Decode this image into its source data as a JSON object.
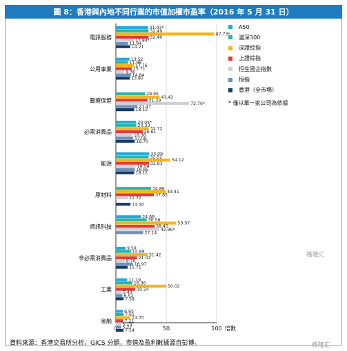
{
  "title": "圖 8：香港與內地不同行業的市值加權市盈率（2016 年 5 月 31 日）",
  "source_note": "資料來源：香港交易所分析，GICS 分類，市值及盈利數據源自彭博。",
  "watermark": "格隆汇",
  "legend_note": "* 僅以單一家公司為依據",
  "chart_data": {
    "type": "bar",
    "orientation": "horizontal",
    "title": "圖 8：香港與內地不同行業的市值加權市盈率（2016 年 5 月 31 日）",
    "xlabel": "倍數",
    "xlim": [
      0,
      100
    ],
    "xticks": [
      "0",
      "50",
      "100"
    ],
    "legend_position": "right",
    "categories": [
      "電訊服務",
      "公用事業",
      "醫療保健",
      "必需消費品",
      "能源",
      "原材料",
      "資訊科技",
      "非必需消費品",
      "工業",
      "金融"
    ],
    "series": [
      {
        "name": "A50",
        "color": "#2aa8d8",
        "values": [
          31.93,
          13.52,
          null,
          20.05,
          33.09,
          null,
          24.88,
          9.59,
          11.19,
          6.95
        ],
        "labels": [
          "31.93*",
          "13.52",
          "",
          "20.05*",
          "33.09",
          "",
          "24.88",
          "9.59",
          "11.19",
          "6.95"
        ]
      },
      {
        "name": "滬深300",
        "color": "#2ab5a6",
        "values": [
          32.49,
          11.98,
          28.95,
          20.33,
          32.52,
          34.86,
          30.58,
          14.89,
          16.36,
          7.61
        ],
        "labels": [
          "32.49",
          "11.98",
          "28.95",
          "20.33",
          "32.52",
          "34.86",
          "30.58",
          "14.89",
          "16.36",
          "7.61"
        ]
      },
      {
        "name": "深證綜指",
        "color": "#f5b41f",
        "values": [
          97.73,
          17.76,
          43.42,
          32.72,
          54.12,
          49.41,
          59.97,
          31.42,
          50.02,
          14.35
        ],
        "labels": [
          "97.73*",
          "17.76",
          "43.42",
          "32.72",
          "54.12",
          "49.41",
          "59.97",
          "31.42",
          "50.02",
          "14.35"
        ]
      },
      {
        "name": "上證綜指",
        "color": "#e03a3e",
        "values": [
          32.49,
          15.71,
          31.29,
          26.61,
          32.83,
          37.85,
          38.45,
          21.02,
          19.24,
          7.21
        ],
        "labels": [
          "32.49",
          "15.71",
          "31.29",
          "26.61",
          "32.83",
          "37.85",
          "38.45",
          "21.02",
          "19.24",
          "7.21"
        ]
      },
      {
        "name": "恒生國企指數",
        "color": "#cfcfd6",
        "values": [
          17.84,
          8.36,
          72.76,
          16.36,
          19.59,
          11.72,
          42.96,
          8.7,
          5.43,
          5.13
        ],
        "labels": [
          "17.84*",
          "8.36",
          "72.76*",
          "16.36",
          "19.59",
          "11.72",
          "42.96*",
          "8.70",
          "5.43",
          "5.13"
        ]
      },
      {
        "name": "恒指",
        "color": "#6f8fb4",
        "values": [
          11.94,
          14.84,
          21.47,
          17.09,
          18.85,
          null,
          27.14,
          16.97,
          6.52,
          5.27
        ],
        "labels": [
          "11.94",
          "14.84",
          "21.47",
          "17.09",
          "18.85",
          "",
          "27.14",
          "16.97",
          "6.52",
          "5.27"
        ]
      },
      {
        "name": "香港（全市場）",
        "color": "#163b66",
        "values": [
          14.21,
          13.8,
          18.12,
          18.7,
          18.12,
          14.5,
          null,
          11.71,
          7.58,
          7.54
        ],
        "labels": [
          "14.21",
          "13.80",
          "18.12",
          "18.70",
          "18.12",
          "14.50",
          "",
          "11.71",
          "7.58",
          "7.54"
        ]
      }
    ]
  }
}
